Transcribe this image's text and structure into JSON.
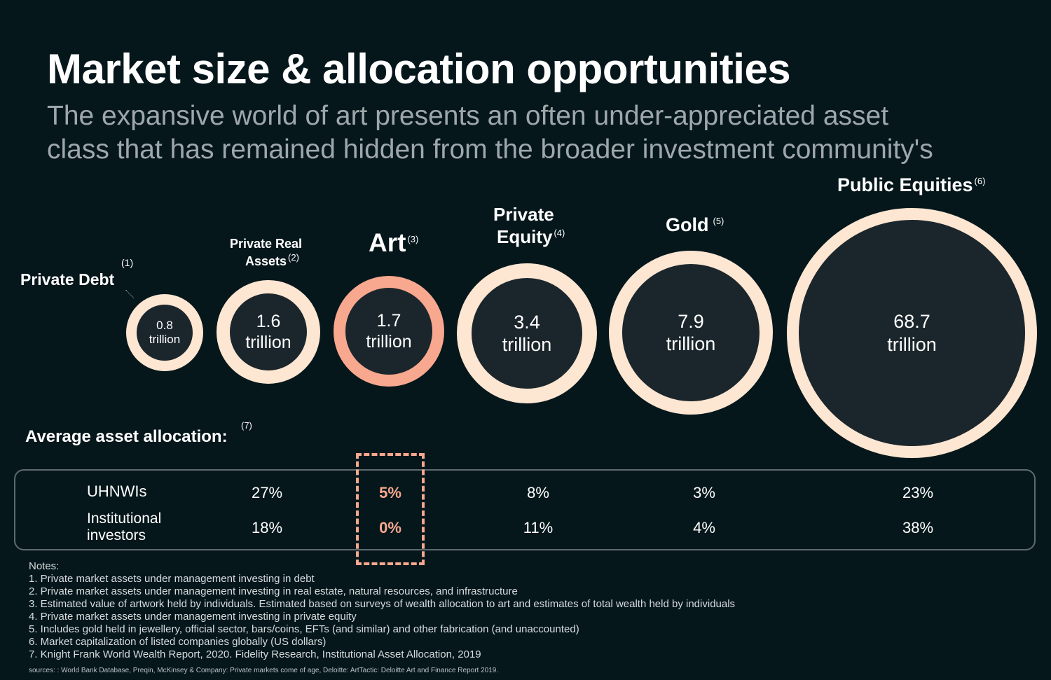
{
  "title": "Market size & allocation opportunities",
  "subtitle": "The expansive world of art presents an often under-appreciated asset class that has remained hidden from the broader investment community's",
  "colors": {
    "background": "#06171c",
    "ring": "#fde6d2",
    "art_accent": "#f8a88e",
    "circle_fill": "#1b262c"
  },
  "assets": [
    {
      "label": "Private Debt",
      "note": "(1)",
      "value": "0.8",
      "unit": "trillion"
    },
    {
      "label_line1": "Private Real",
      "label_line2": "Assets",
      "note": "(2)",
      "value": "1.6",
      "unit": "trillion"
    },
    {
      "label": "Art",
      "note": "(3)",
      "value": "1.7",
      "unit": "trillion"
    },
    {
      "label_line1": "Private",
      "label_line2": "Equity",
      "note": "(4)",
      "value": "3.4",
      "unit": "trillion"
    },
    {
      "label": "Gold",
      "note": "(5)",
      "value": "7.9",
      "unit": "trillion"
    },
    {
      "label": "Public Equities",
      "note": "(6)",
      "value": "68.7",
      "unit": "trillion"
    }
  ],
  "allocation": {
    "heading": "Average asset allocation:",
    "note": "(7)",
    "rows": [
      {
        "label": "UHNWIs",
        "values": [
          "27%",
          "5%",
          "8%",
          "3%",
          "23%"
        ]
      },
      {
        "label": "Institutional investors",
        "values": [
          "18%",
          "0%",
          "11%",
          "4%",
          "38%"
        ]
      }
    ]
  },
  "notes": {
    "heading": "Notes:",
    "items": [
      "1. Private market assets under management investing in debt",
      "2. Private market assets under management investing in real estate, natural resources, and infrastructure",
      "3. Estimated value of artwork held by individuals. Estimated based on surveys of wealth allocation to art and estimates of total wealth held by individuals",
      "4. Private market assets under management investing in private equity",
      "5. Includes gold held in jewellery, official sector, bars/coins, EFTs (and similar) and other fabrication (and unaccounted)",
      "6. Market capitalization of listed companies globally (US dollars)",
      "7. Knight Frank World Wealth Report, 2020. Fidelity Research, Institutional Asset Allocation, 2019"
    ]
  },
  "sources": "sources: : World Bank Database, Preqin, McKinsey & Company: Private markets come of age, Deloitte: ArtTactic: Deloitte Art and Finance Report 2019."
}
